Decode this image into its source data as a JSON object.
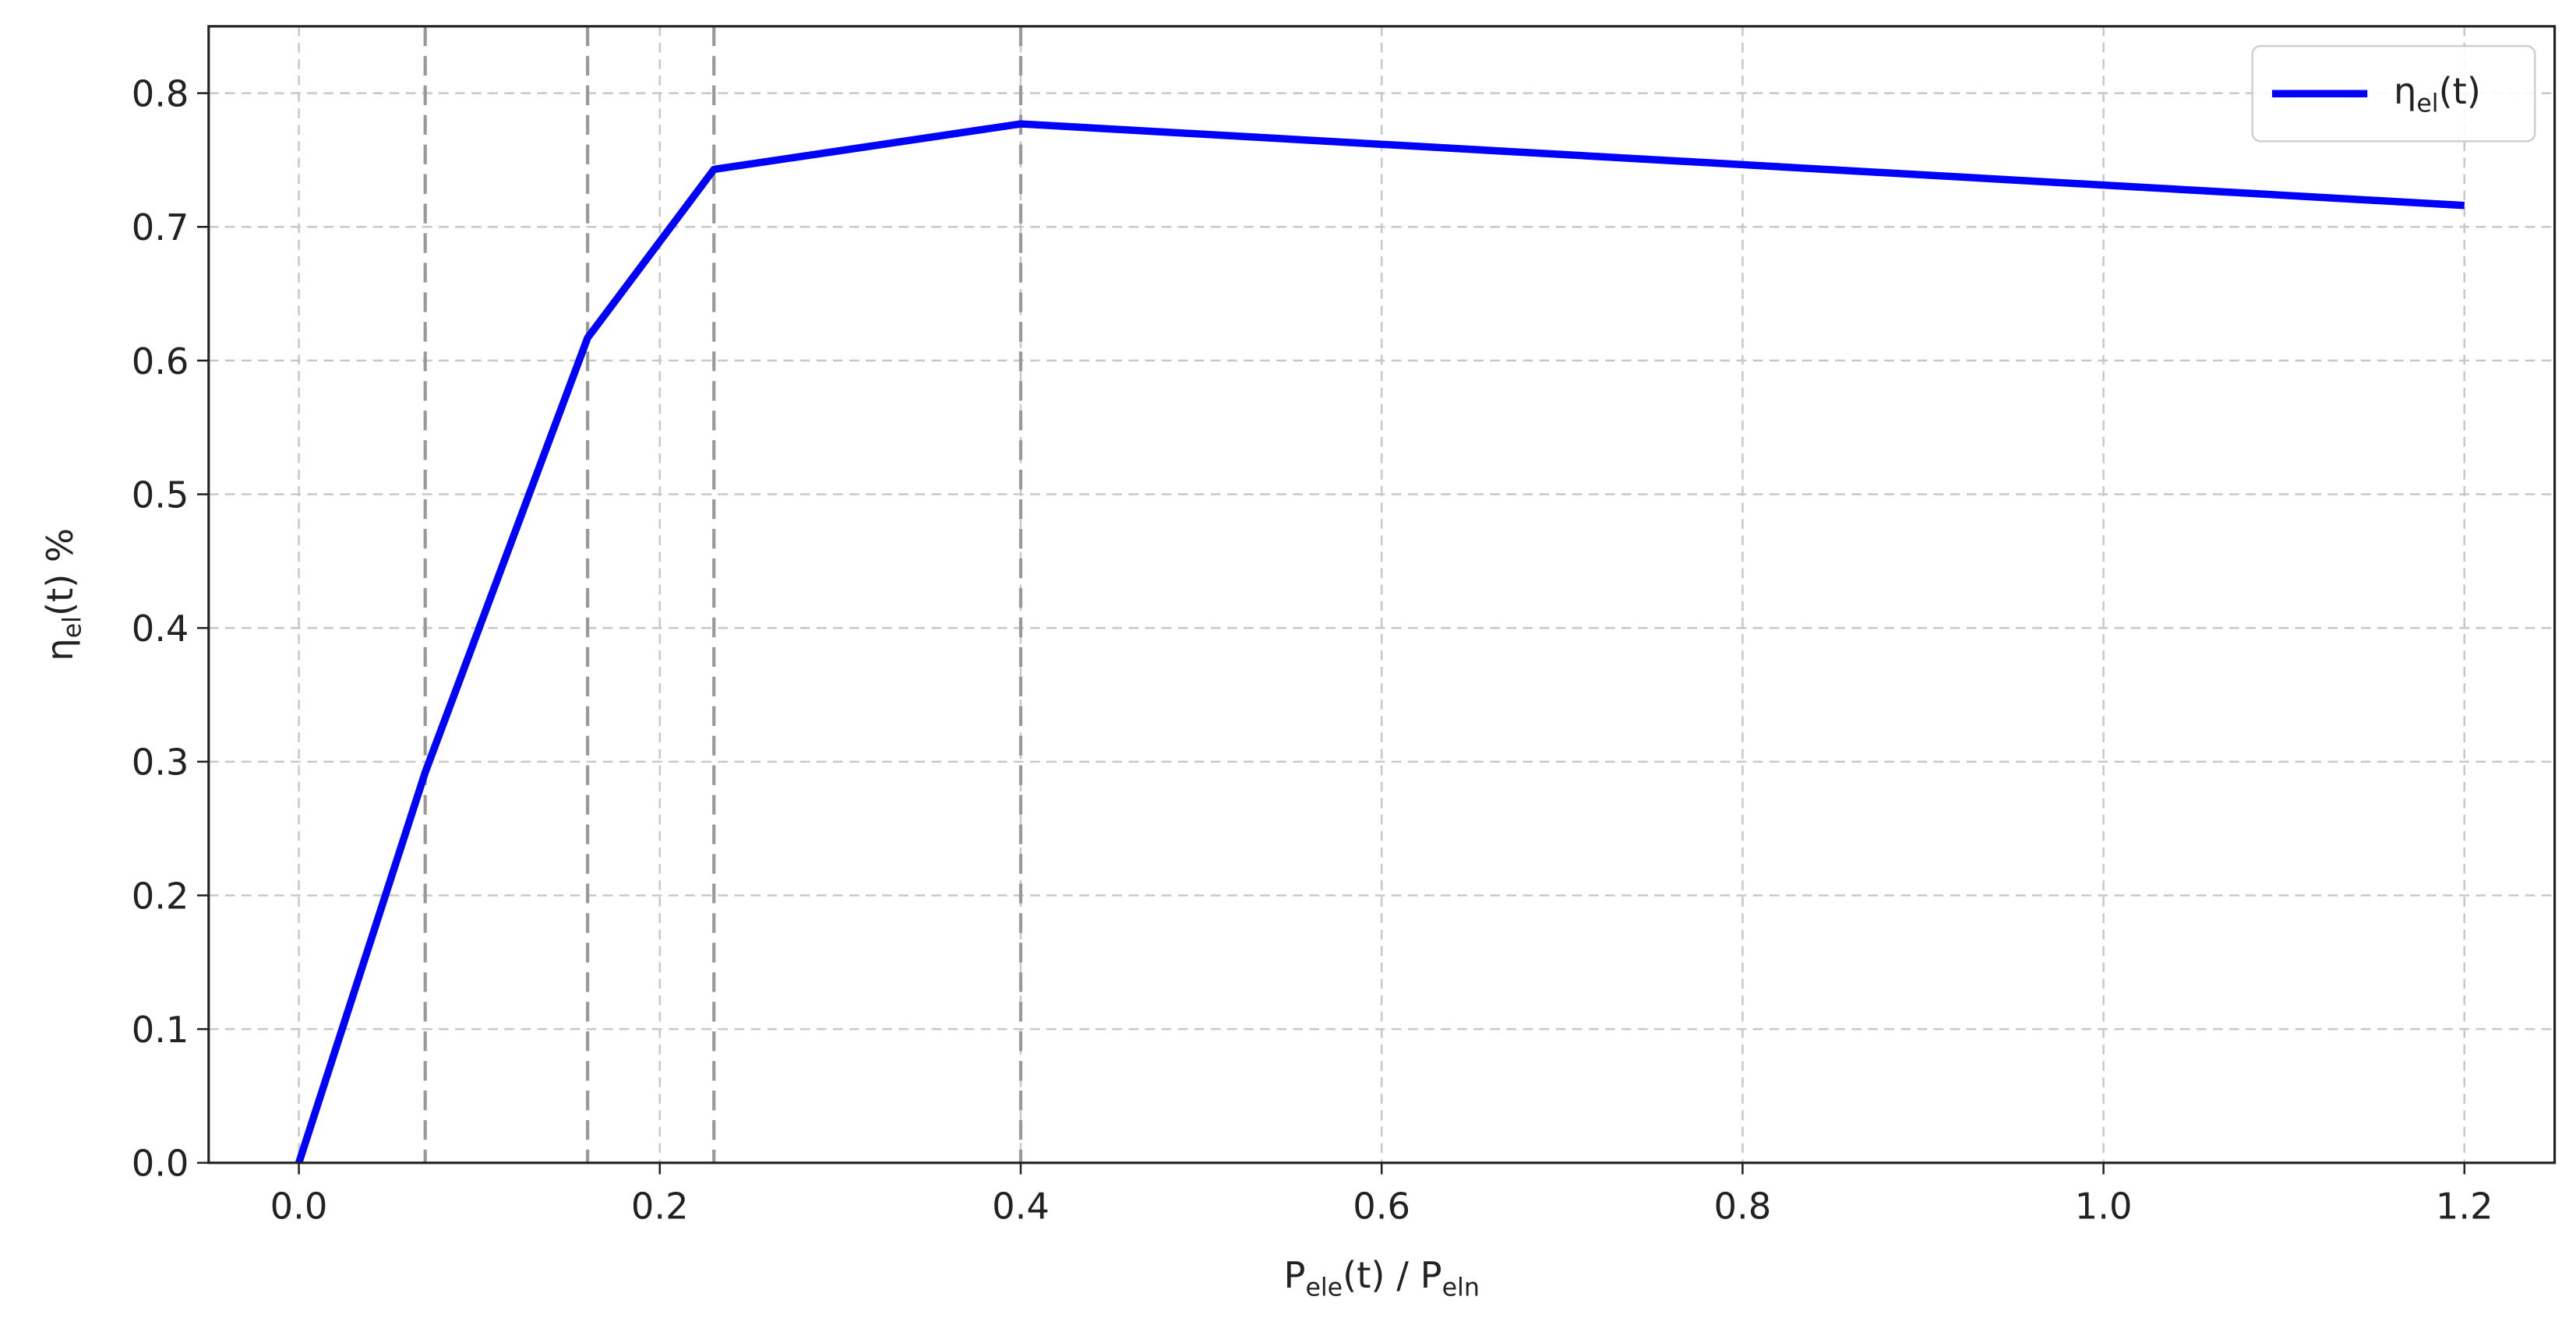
{
  "chart_data": {
    "type": "line",
    "xlabel": [
      "P",
      "ele",
      "(t) / P",
      "eln"
    ],
    "ylabel": [
      "η",
      "el",
      "(t) %"
    ],
    "x": [
      0,
      0.07,
      0.16,
      0.23,
      0.4,
      1.2
    ],
    "series": [
      {
        "name": [
          "η",
          "el",
          "(t)"
        ],
        "color": "#0000ff",
        "values": [
          0,
          0.292,
          0.617,
          0.743,
          0.777,
          0.716
        ]
      }
    ],
    "xlim": [
      -0.05,
      1.25
    ],
    "ylim": [
      0,
      0.85
    ],
    "xticks": [
      {
        "value": 0,
        "label": "0.0"
      },
      0.2,
      0.4,
      0.6,
      0.8,
      {
        "value": 1,
        "label": "1.0"
      },
      1.2
    ],
    "yticks": [
      {
        "value": 0,
        "label": "0.0"
      },
      0.1,
      0.2,
      0.3,
      0.4,
      0.5,
      0.6,
      0.7,
      0.8
    ],
    "vlines": [
      0.07,
      0.16,
      0.23,
      0.4
    ],
    "grid": true,
    "legend": "upper right"
  }
}
